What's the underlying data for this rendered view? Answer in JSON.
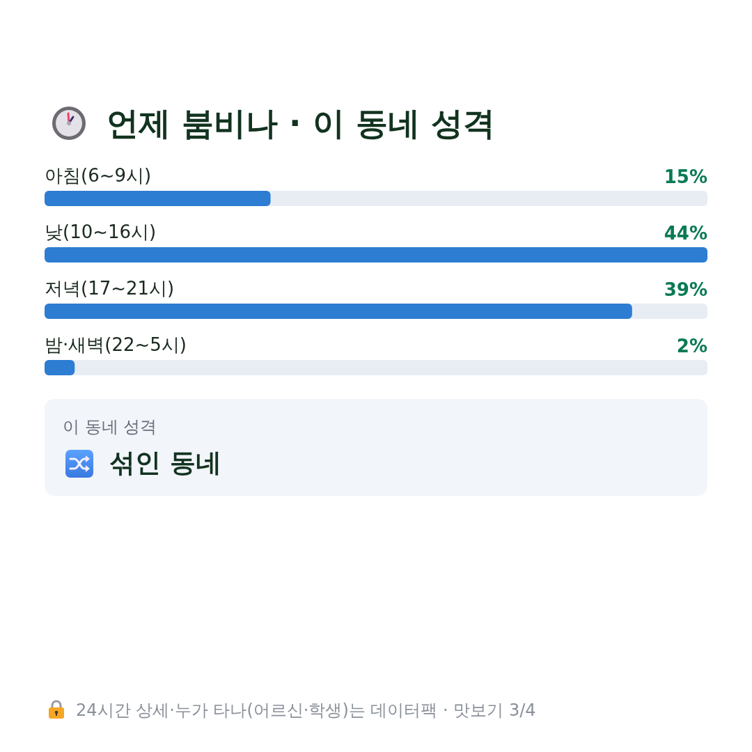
{
  "chart_data": {
    "type": "bar",
    "title": "언제 붐비나 · 이 동네 성격",
    "orientation": "horizontal",
    "categories": [
      "아침(6~9시)",
      "낮(10~16시)",
      "저녁(17~21시)",
      "밤·새벽(22~5시)"
    ],
    "values": [
      15,
      44,
      39,
      2
    ],
    "color": "#2d7dd2",
    "value_labels": [
      "15%",
      "44%",
      "39%",
      "2%"
    ],
    "tick_labels": "y",
    "annotations": [
      "이 동네 성격",
      "섞인 동네",
      "24시간 상세·누가 타나(어르신·학생)는 데이터팩 · 맛보기 3/4"
    ]
  }
}
